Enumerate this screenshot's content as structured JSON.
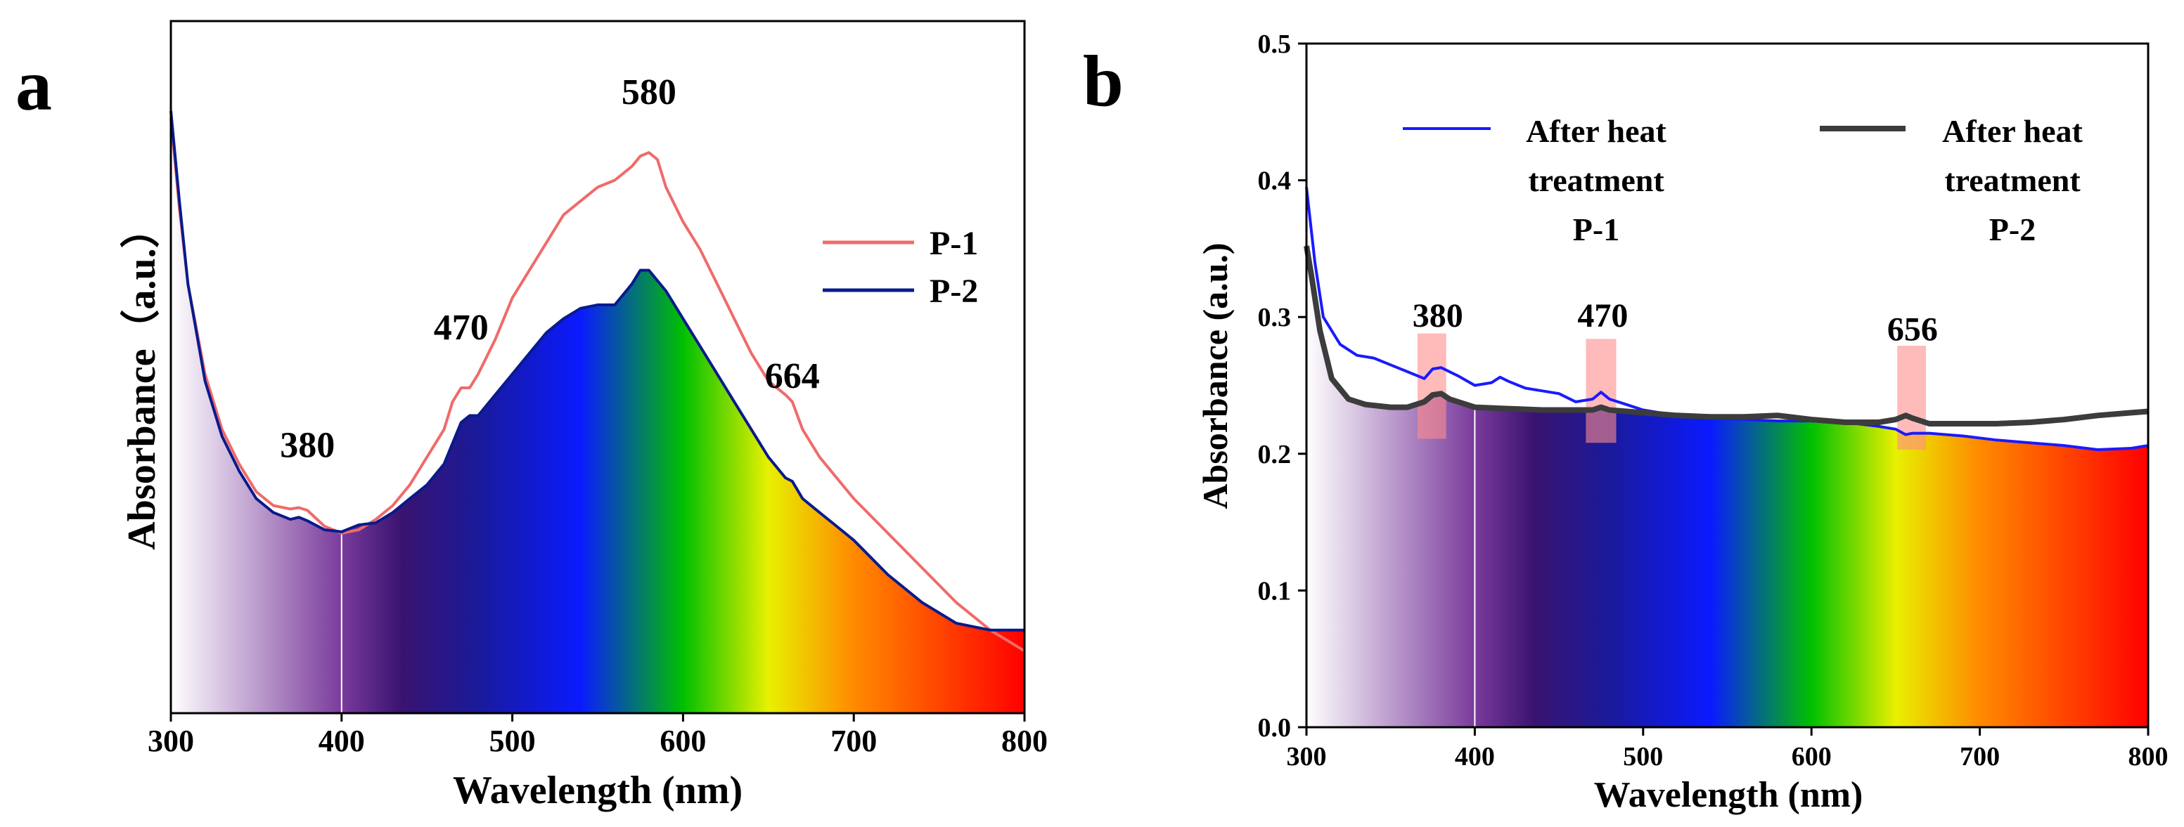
{
  "chart_data": [
    {
      "panel": "a",
      "type": "line",
      "xlabel": "Wavelength (nm)",
      "ylabel": "Absorbance（a.u.）",
      "xlim": [
        300,
        800
      ],
      "ylim": [
        0,
        1
      ],
      "x_ticks": [
        300,
        400,
        500,
        600,
        700,
        800
      ],
      "y_ticks_shown": false,
      "legend": "right",
      "series": [
        {
          "name": "P-1",
          "color": "#f06a6a",
          "points": [
            [
              300,
              0.86
            ],
            [
              305,
              0.73
            ],
            [
              310,
              0.62
            ],
            [
              320,
              0.49
            ],
            [
              330,
              0.41
            ],
            [
              340,
              0.36
            ],
            [
              350,
              0.32
            ],
            [
              360,
              0.3
            ],
            [
              370,
              0.295
            ],
            [
              375,
              0.297
            ],
            [
              380,
              0.293
            ],
            [
              390,
              0.27
            ],
            [
              400,
              0.26
            ],
            [
              410,
              0.265
            ],
            [
              420,
              0.28
            ],
            [
              430,
              0.3
            ],
            [
              440,
              0.33
            ],
            [
              450,
              0.37
            ],
            [
              460,
              0.41
            ],
            [
              465,
              0.45
            ],
            [
              470,
              0.47
            ],
            [
              475,
              0.47
            ],
            [
              480,
              0.49
            ],
            [
              490,
              0.54
            ],
            [
              500,
              0.6
            ],
            [
              510,
              0.64
            ],
            [
              520,
              0.68
            ],
            [
              530,
              0.72
            ],
            [
              540,
              0.74
            ],
            [
              550,
              0.76
            ],
            [
              560,
              0.77
            ],
            [
              570,
              0.79
            ],
            [
              575,
              0.805
            ],
            [
              580,
              0.81
            ],
            [
              585,
              0.8
            ],
            [
              590,
              0.76
            ],
            [
              600,
              0.71
            ],
            [
              610,
              0.67
            ],
            [
              620,
              0.62
            ],
            [
              630,
              0.57
            ],
            [
              640,
              0.52
            ],
            [
              650,
              0.48
            ],
            [
              660,
              0.46
            ],
            [
              664,
              0.45
            ],
            [
              670,
              0.41
            ],
            [
              680,
              0.37
            ],
            [
              690,
              0.34
            ],
            [
              700,
              0.31
            ],
            [
              720,
              0.26
            ],
            [
              740,
              0.21
            ],
            [
              760,
              0.16
            ],
            [
              780,
              0.12
            ],
            [
              800,
              0.09
            ]
          ]
        },
        {
          "name": "P-2",
          "color": "#0a1a8c",
          "points": [
            [
              300,
              0.87
            ],
            [
              305,
              0.74
            ],
            [
              310,
              0.62
            ],
            [
              320,
              0.48
            ],
            [
              330,
              0.4
            ],
            [
              340,
              0.35
            ],
            [
              350,
              0.31
            ],
            [
              360,
              0.29
            ],
            [
              370,
              0.28
            ],
            [
              375,
              0.283
            ],
            [
              380,
              0.278
            ],
            [
              390,
              0.265
            ],
            [
              400,
              0.262
            ],
            [
              410,
              0.272
            ],
            [
              420,
              0.275
            ],
            [
              430,
              0.29
            ],
            [
              440,
              0.31
            ],
            [
              450,
              0.33
            ],
            [
              460,
              0.36
            ],
            [
              470,
              0.42
            ],
            [
              475,
              0.43
            ],
            [
              480,
              0.43
            ],
            [
              490,
              0.46
            ],
            [
              500,
              0.49
            ],
            [
              510,
              0.52
            ],
            [
              520,
              0.55
            ],
            [
              530,
              0.57
            ],
            [
              540,
              0.585
            ],
            [
              550,
              0.59
            ],
            [
              560,
              0.59
            ],
            [
              570,
              0.62
            ],
            [
              575,
              0.64
            ],
            [
              580,
              0.64
            ],
            [
              590,
              0.61
            ],
            [
              600,
              0.57
            ],
            [
              610,
              0.53
            ],
            [
              620,
              0.49
            ],
            [
              630,
              0.45
            ],
            [
              640,
              0.41
            ],
            [
              650,
              0.37
            ],
            [
              660,
              0.34
            ],
            [
              664,
              0.335
            ],
            [
              670,
              0.31
            ],
            [
              680,
              0.29
            ],
            [
              690,
              0.27
            ],
            [
              700,
              0.25
            ],
            [
              720,
              0.2
            ],
            [
              740,
              0.16
            ],
            [
              760,
              0.13
            ],
            [
              780,
              0.12
            ],
            [
              800,
              0.12
            ]
          ]
        }
      ],
      "annotations": [
        {
          "text": "380",
          "x": 380,
          "y": 0.37
        },
        {
          "text": "470",
          "x": 470,
          "y": 0.54
        },
        {
          "text": "580",
          "x": 580,
          "y": 0.88
        },
        {
          "text": "664",
          "x": 664,
          "y": 0.47
        }
      ]
    },
    {
      "panel": "b",
      "type": "line",
      "xlabel": "Wavelength (nm)",
      "ylabel": "Absorbance (a.u.)",
      "xlim": [
        300,
        800
      ],
      "ylim": [
        0,
        0.5
      ],
      "x_ticks": [
        300,
        400,
        500,
        600,
        700,
        800
      ],
      "y_ticks": [
        "0.0",
        "0.1",
        "0.2",
        "0.3",
        "0.4",
        "0.5"
      ],
      "legend": "top",
      "series": [
        {
          "name": "After heat treatment P-1",
          "color": "#1a1aff",
          "points": [
            [
              300,
              0.395
            ],
            [
              305,
              0.34
            ],
            [
              310,
              0.3
            ],
            [
              320,
              0.28
            ],
            [
              330,
              0.272
            ],
            [
              340,
              0.27
            ],
            [
              350,
              0.265
            ],
            [
              360,
              0.26
            ],
            [
              370,
              0.255
            ],
            [
              375,
              0.262
            ],
            [
              380,
              0.263
            ],
            [
              390,
              0.257
            ],
            [
              400,
              0.25
            ],
            [
              410,
              0.252
            ],
            [
              415,
              0.256
            ],
            [
              420,
              0.253
            ],
            [
              430,
              0.248
            ],
            [
              440,
              0.246
            ],
            [
              450,
              0.244
            ],
            [
              460,
              0.238
            ],
            [
              470,
              0.24
            ],
            [
              475,
              0.245
            ],
            [
              480,
              0.24
            ],
            [
              490,
              0.236
            ],
            [
              500,
              0.232
            ],
            [
              520,
              0.228
            ],
            [
              540,
              0.226
            ],
            [
              560,
              0.225
            ],
            [
              580,
              0.224
            ],
            [
              600,
              0.224
            ],
            [
              620,
              0.223
            ],
            [
              640,
              0.22
            ],
            [
              650,
              0.218
            ],
            [
              656,
              0.214
            ],
            [
              660,
              0.215
            ],
            [
              670,
              0.215
            ],
            [
              690,
              0.213
            ],
            [
              710,
              0.21
            ],
            [
              730,
              0.208
            ],
            [
              750,
              0.206
            ],
            [
              770,
              0.203
            ],
            [
              790,
              0.204
            ],
            [
              800,
              0.206
            ]
          ]
        },
        {
          "name": "After heat treatment P-2",
          "color": "#3c3c3c",
          "points": [
            [
              300,
              0.352
            ],
            [
              303,
              0.33
            ],
            [
              308,
              0.29
            ],
            [
              315,
              0.255
            ],
            [
              325,
              0.24
            ],
            [
              335,
              0.236
            ],
            [
              350,
              0.234
            ],
            [
              360,
              0.234
            ],
            [
              370,
              0.238
            ],
            [
              375,
              0.243
            ],
            [
              380,
              0.244
            ],
            [
              385,
              0.24
            ],
            [
              400,
              0.234
            ],
            [
              420,
              0.233
            ],
            [
              440,
              0.232
            ],
            [
              460,
              0.232
            ],
            [
              470,
              0.232
            ],
            [
              475,
              0.234
            ],
            [
              480,
              0.232
            ],
            [
              500,
              0.23
            ],
            [
              520,
              0.228
            ],
            [
              540,
              0.227
            ],
            [
              560,
              0.227
            ],
            [
              580,
              0.228
            ],
            [
              600,
              0.225
            ],
            [
              620,
              0.223
            ],
            [
              640,
              0.223
            ],
            [
              650,
              0.225
            ],
            [
              656,
              0.228
            ],
            [
              660,
              0.226
            ],
            [
              670,
              0.222
            ],
            [
              690,
              0.222
            ],
            [
              710,
              0.222
            ],
            [
              730,
              0.223
            ],
            [
              750,
              0.225
            ],
            [
              770,
              0.228
            ],
            [
              790,
              0.23
            ],
            [
              800,
              0.231
            ]
          ]
        }
      ],
      "annotations": [
        {
          "text": "380",
          "x": 378,
          "y": 0.293
        },
        {
          "text": "470",
          "x": 476,
          "y": 0.293
        },
        {
          "text": "656",
          "x": 660,
          "y": 0.283
        }
      ],
      "highlight_bands": [
        {
          "x": [
            366,
            383
          ],
          "y": [
            0.211,
            0.288
          ]
        },
        {
          "x": [
            466,
            484
          ],
          "y": [
            0.208,
            0.284
          ]
        },
        {
          "x": [
            651,
            668
          ],
          "y": [
            0.203,
            0.279
          ]
        }
      ]
    }
  ],
  "panel_labels": [
    "a",
    "b"
  ]
}
